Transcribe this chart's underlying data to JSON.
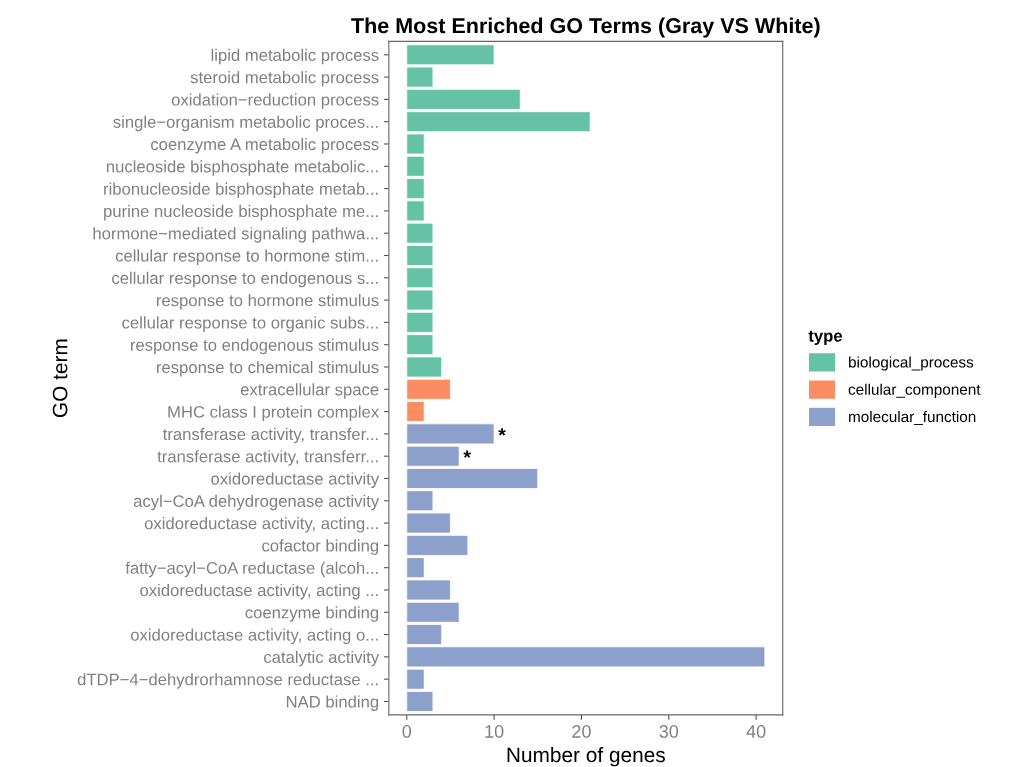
{
  "chart_data": {
    "type": "bar",
    "orientation": "horizontal",
    "title": "The Most Enriched GO Terms (Gray VS White)",
    "xlabel": "Number of genes",
    "ylabel": "GO term",
    "legend_title": "type",
    "legend": "right",
    "categories": [
      "lipid metabolic process",
      "steroid metabolic process",
      "oxidation−reduction process",
      "single−organism metabolic proces...",
      "coenzyme A metabolic process",
      "nucleoside bisphosphate metabolic...",
      "ribonucleoside bisphosphate metab...",
      "purine nucleoside bisphosphate me...",
      "hormone−mediated signaling pathwa...",
      "cellular response to hormone stim...",
      "cellular response to endogenous s...",
      "response to hormone stimulus",
      "cellular response to organic subs...",
      "response to endogenous stimulus",
      "response to chemical stimulus",
      "extracellular space",
      "MHC class I protein complex",
      "transferase activity, transfer...",
      "transferase activity, transferr...",
      "oxidoreductase activity",
      "acyl−CoA dehydrogenase activity",
      "oxidoreductase activity, acting...",
      "cofactor binding",
      "fatty−acyl−CoA reductase (alcoh...",
      "oxidoreductase activity, acting ...",
      "coenzyme binding",
      "oxidoreductase activity, acting o...",
      "catalytic activity",
      "dTDP−4−dehydrorhamnose reductase ...",
      "NAD binding"
    ],
    "series": [
      {
        "name": "biological_process",
        "color": "#66c2a5",
        "values": [
          10,
          3,
          13,
          21,
          2,
          2,
          2,
          2,
          3,
          3,
          3,
          3,
          3,
          3,
          4,
          null,
          null,
          null,
          null,
          null,
          null,
          null,
          null,
          null,
          null,
          null,
          null,
          null,
          null,
          null
        ]
      },
      {
        "name": "cellular_component",
        "color": "#fc8d62",
        "values": [
          null,
          null,
          null,
          null,
          null,
          null,
          null,
          null,
          null,
          null,
          null,
          null,
          null,
          null,
          null,
          5,
          2,
          null,
          null,
          null,
          null,
          null,
          null,
          null,
          null,
          null,
          null,
          null,
          null,
          null
        ]
      },
      {
        "name": "molecular_function",
        "color": "#8da0cb",
        "values": [
          null,
          null,
          null,
          null,
          null,
          null,
          null,
          null,
          null,
          null,
          null,
          null,
          null,
          null,
          null,
          null,
          null,
          10,
          6,
          15,
          3,
          5,
          7,
          2,
          5,
          6,
          4,
          41,
          2,
          3
        ]
      }
    ],
    "xlim": [
      -2.05,
      43.05
    ],
    "xticks": [
      0,
      10,
      20,
      30,
      40
    ],
    "grid": false,
    "annotations": [
      {
        "text": "*",
        "x": 10,
        "y": "transferase activity, transfer..."
      },
      {
        "text": "*",
        "x": 6,
        "y": "transferase activity, transferr..."
      }
    ]
  }
}
